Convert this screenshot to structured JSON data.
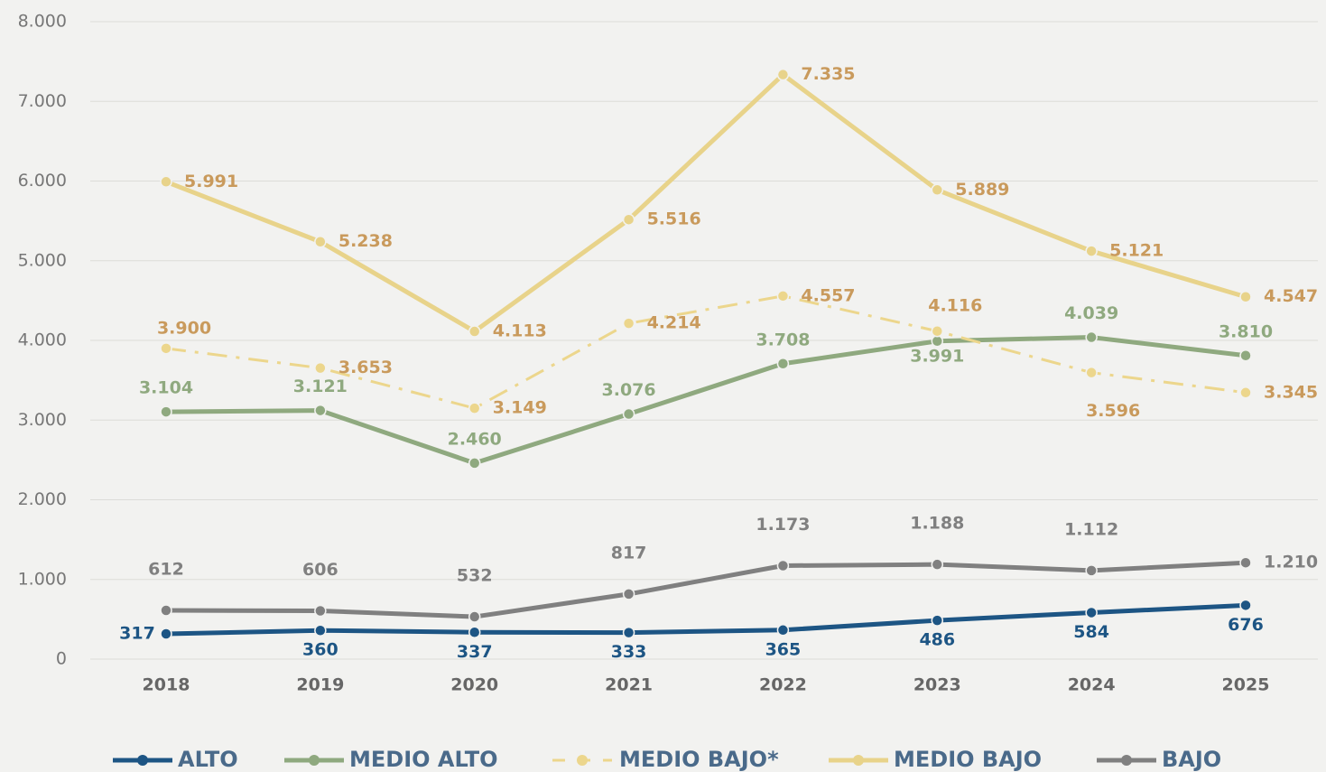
{
  "chart_data": {
    "type": "line",
    "categories": [
      "2018",
      "2019",
      "2020",
      "2021",
      "2022",
      "2023",
      "2024",
      "2025"
    ],
    "series": [
      {
        "name": "ALTO",
        "color": "#1d5584",
        "label_color": "#1d5584",
        "linestyle": "solid",
        "values": [
          317,
          360,
          337,
          333,
          365,
          486,
          584,
          676
        ]
      },
      {
        "name": "MEDIO ALTO",
        "color": "#8fa97f",
        "label_color": "#8fa97f",
        "linestyle": "solid",
        "values": [
          3104,
          3121,
          2460,
          3076,
          3708,
          3991,
          4039,
          3810
        ],
        "value_labels": [
          "3.104",
          "3.121",
          "2.460",
          "3.076",
          "3.708",
          "3.991",
          "4.039",
          "3.810"
        ]
      },
      {
        "name": "MEDIO BAJO*",
        "color": "#ecd68c",
        "label_color": "#c99a5c",
        "linestyle": "dashdot",
        "values": [
          3900,
          3653,
          3149,
          4214,
          4557,
          4116,
          3596,
          3345
        ],
        "value_labels": [
          "3.900",
          "3.653",
          "3.149",
          "4.214",
          "4.557",
          "4.116",
          "3.596",
          "3.345"
        ]
      },
      {
        "name": "MEDIO BAJO",
        "color": "#e8d38a",
        "label_color": "#c99a5c",
        "linestyle": "solid",
        "values": [
          5991,
          5238,
          4113,
          5516,
          7335,
          5889,
          5121,
          4547
        ],
        "value_labels": [
          "5.991",
          "5.238",
          "4.113",
          "5.516",
          "7.335",
          "5.889",
          "5.121",
          "4.547"
        ]
      },
      {
        "name": "BAJO",
        "color": "#808080",
        "label_color": "#808080",
        "linestyle": "solid",
        "values": [
          612,
          606,
          532,
          817,
          1173,
          1188,
          1112,
          1210
        ],
        "value_labels": [
          "612",
          "606",
          "532",
          "817",
          "1.173",
          "1.188",
          "1.112",
          "1.210"
        ]
      }
    ],
    "ylim": [
      0,
      8000
    ],
    "yticks": [
      0,
      {
        "value": 1000,
        "label": "1.000"
      },
      {
        "value": 2000,
        "label": "2.000"
      },
      {
        "value": 3000,
        "label": "3.000"
      },
      {
        "value": 4000,
        "label": "4.000"
      },
      {
        "value": 5000,
        "label": "5.000"
      },
      {
        "value": 6000,
        "label": "6.000"
      },
      {
        "value": 7000,
        "label": "7.000"
      },
      {
        "value": 8000,
        "label": "8.000"
      }
    ],
    "grid": true,
    "legend": "bottom"
  }
}
